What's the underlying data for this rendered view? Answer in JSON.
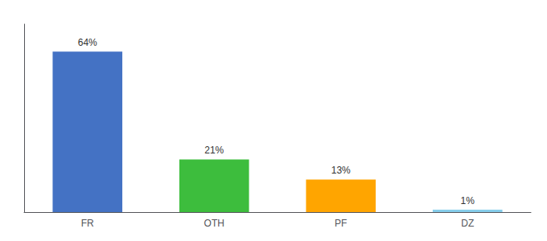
{
  "chart_data": {
    "type": "bar",
    "categories": [
      "FR",
      "OTH",
      "PF",
      "DZ"
    ],
    "values": [
      64,
      21,
      13,
      1
    ],
    "value_labels": [
      "64%",
      "21%",
      "13%",
      "1%"
    ],
    "colors": [
      "#4472C4",
      "#3DBD3D",
      "#FFA500",
      "#87CEEB"
    ],
    "ylim": [
      0,
      75
    ],
    "data_labels": true,
    "tick_labels": "x",
    "grid": false
  }
}
